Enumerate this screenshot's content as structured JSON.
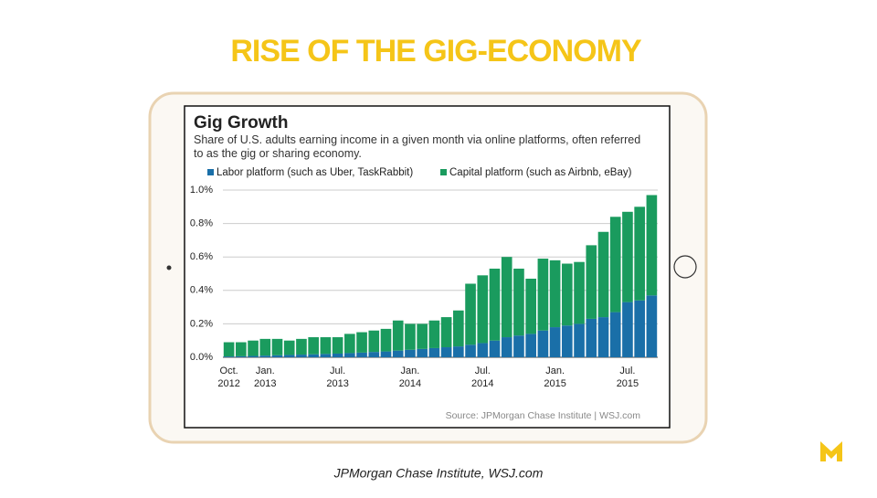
{
  "slide_title": "RISE OF THE GIG-ECONOMY",
  "caption": "JPMorgan Chase Institute, WSJ.com",
  "chart_data": {
    "type": "stacked_bar",
    "title": "Gig Growth",
    "subtitle": "Share of U.S. adults earning income in a given month via online platforms, often referred to as the gig or sharing economy.",
    "source": "Source: JPMorgan Chase Institute  |  WSJ.com",
    "categories": [
      "Oct. 2012",
      null,
      null,
      "Jan. 2013",
      null,
      null,
      null,
      null,
      null,
      "Jul. 2013",
      null,
      null,
      null,
      null,
      null,
      "Jan. 2014",
      null,
      null,
      null,
      null,
      null,
      "Jul. 2014",
      null,
      null,
      null,
      null,
      null,
      "Jan. 2015",
      null,
      null,
      null,
      null,
      null,
      "Jul. 2015",
      null,
      null
    ],
    "series": [
      {
        "name": "Labor platform (such as Uber, TaskRabbit)",
        "color": "#1a6fa8",
        "values": [
          0.005,
          0.006,
          0.008,
          0.01,
          0.012,
          0.014,
          0.016,
          0.018,
          0.02,
          0.022,
          0.025,
          0.028,
          0.032,
          0.035,
          0.04,
          0.045,
          0.05,
          0.055,
          0.06,
          0.065,
          0.075,
          0.085,
          0.1,
          0.12,
          0.13,
          0.14,
          0.16,
          0.18,
          0.19,
          0.2,
          0.23,
          0.24,
          0.27,
          0.33,
          0.34,
          0.37
        ]
      },
      {
        "name": "Capital platform (such as Airbnb, eBay)",
        "color": "#1a9b5e",
        "values": [
          0.085,
          0.084,
          0.092,
          0.1,
          0.098,
          0.086,
          0.094,
          0.102,
          0.1,
          0.098,
          0.115,
          0.122,
          0.128,
          0.135,
          0.18,
          0.155,
          0.15,
          0.165,
          0.18,
          0.215,
          0.365,
          0.405,
          0.43,
          0.48,
          0.4,
          0.33,
          0.43,
          0.4,
          0.37,
          0.37,
          0.44,
          0.51,
          0.57,
          0.54,
          0.56,
          0.6
        ]
      }
    ],
    "ylim": [
      0,
      1.0
    ],
    "yticks": [
      {
        "value": 0,
        "label": "0.0%"
      },
      {
        "value": 0.2,
        "label": "0.2%"
      },
      {
        "value": 0.4,
        "label": "0.4%"
      },
      {
        "value": 0.6,
        "label": "0.6%"
      },
      {
        "value": 0.8,
        "label": "0.8%"
      },
      {
        "value": 1.0,
        "label": "1.0%"
      }
    ],
    "grid": true
  }
}
